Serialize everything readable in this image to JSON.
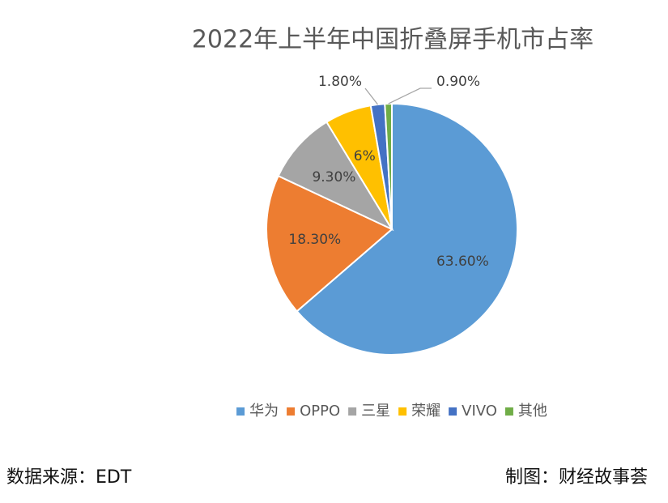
{
  "chart_data": {
    "type": "pie",
    "title": "2022年上半年中国折叠屏手机市占率",
    "categories": [
      "华为",
      "OPPO",
      "三星",
      "荣耀",
      "VIVO",
      "其他"
    ],
    "values": [
      63.6,
      18.3,
      9.3,
      6,
      1.8,
      0.9
    ],
    "value_labels": [
      "63.60%",
      "18.30%",
      "9.30%",
      "6%",
      "1.80%",
      "0.90%"
    ],
    "colors": [
      "#5b9bd5",
      "#ed7d31",
      "#a5a5a5",
      "#ffc000",
      "#4472c4",
      "#70ad47"
    ],
    "legend": "bottom"
  },
  "footer": {
    "source": "数据来源：EDT",
    "credit": "制图：财经故事荟"
  }
}
